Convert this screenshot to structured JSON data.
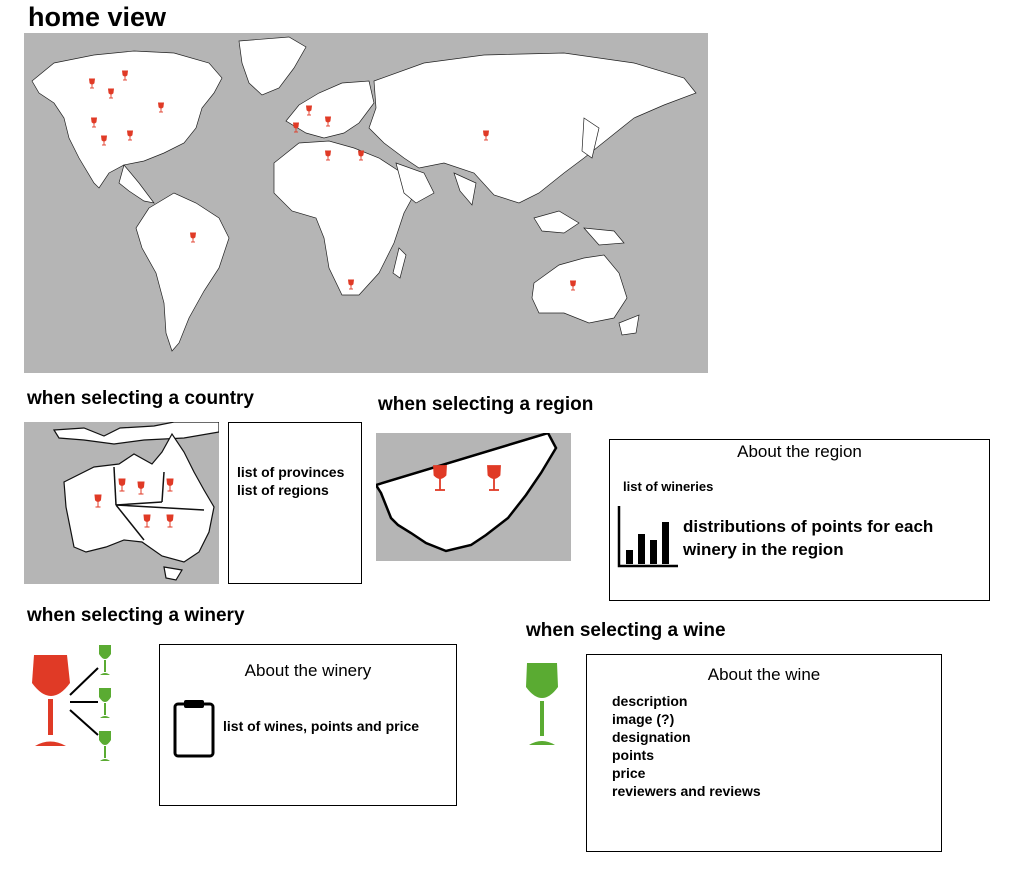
{
  "title": "home view",
  "sections": {
    "country": {
      "heading": "when selecting a country",
      "lines": [
        "list of provinces",
        "list of regions"
      ]
    },
    "region": {
      "heading": "when selecting a region",
      "panel_title": "About the region",
      "list_label": "list of wineries",
      "chart_caption": [
        "distributions of points for each",
        "winery in the region"
      ]
    },
    "winery": {
      "heading": "when selecting a winery",
      "panel_title": "About the winery",
      "list_label": "list of wines, points and price"
    },
    "wine": {
      "heading": "when selecting a wine",
      "panel_title": "About the wine",
      "fields": [
        "description",
        "image (?)",
        "designation",
        "points",
        "price",
        "reviewers and reviews"
      ]
    }
  },
  "colors": {
    "map_bg": "#b5b5b5",
    "land": "#ffffff",
    "red_glass": "#e03a26",
    "green_glass": "#5aab32"
  },
  "icons": [
    "wine-glass-icon",
    "bar-chart-icon",
    "clipboard-icon"
  ]
}
